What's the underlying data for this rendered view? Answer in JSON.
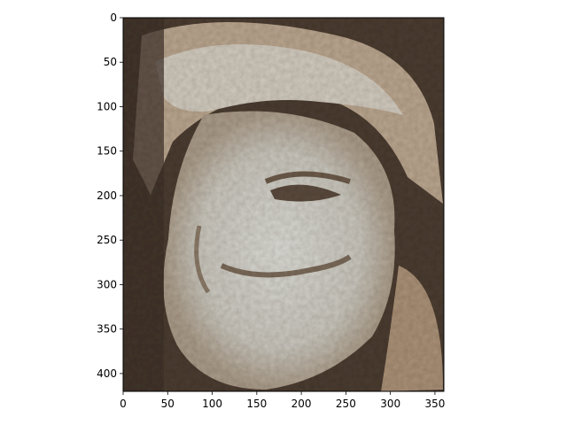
{
  "chart_data": {
    "type": "image",
    "title": "",
    "xlabel": "",
    "ylabel": "",
    "xlim": [
      0,
      360
    ],
    "ylim": [
      420,
      0
    ],
    "y_inverted": true,
    "x_ticks": [
      0,
      50,
      100,
      150,
      200,
      250,
      300,
      350
    ],
    "y_ticks": [
      0,
      50,
      100,
      150,
      200,
      250,
      300,
      350,
      400
    ],
    "x_tick_labels": [
      "0",
      "50",
      "100",
      "150",
      "200",
      "250",
      "300",
      "350"
    ],
    "y_tick_labels": [
      "0",
      "50",
      "100",
      "150",
      "200",
      "250",
      "300",
      "350",
      "400"
    ],
    "grid": false,
    "image_content": "mosaic-style portrait of a face built from small brown, beige and light-grey tiles",
    "palette": {
      "dark": "#3a2e26",
      "mid_brown": "#7a6450",
      "tan": "#a89077",
      "light": "#cfd0cc",
      "highlight": "#e2e3de"
    }
  }
}
